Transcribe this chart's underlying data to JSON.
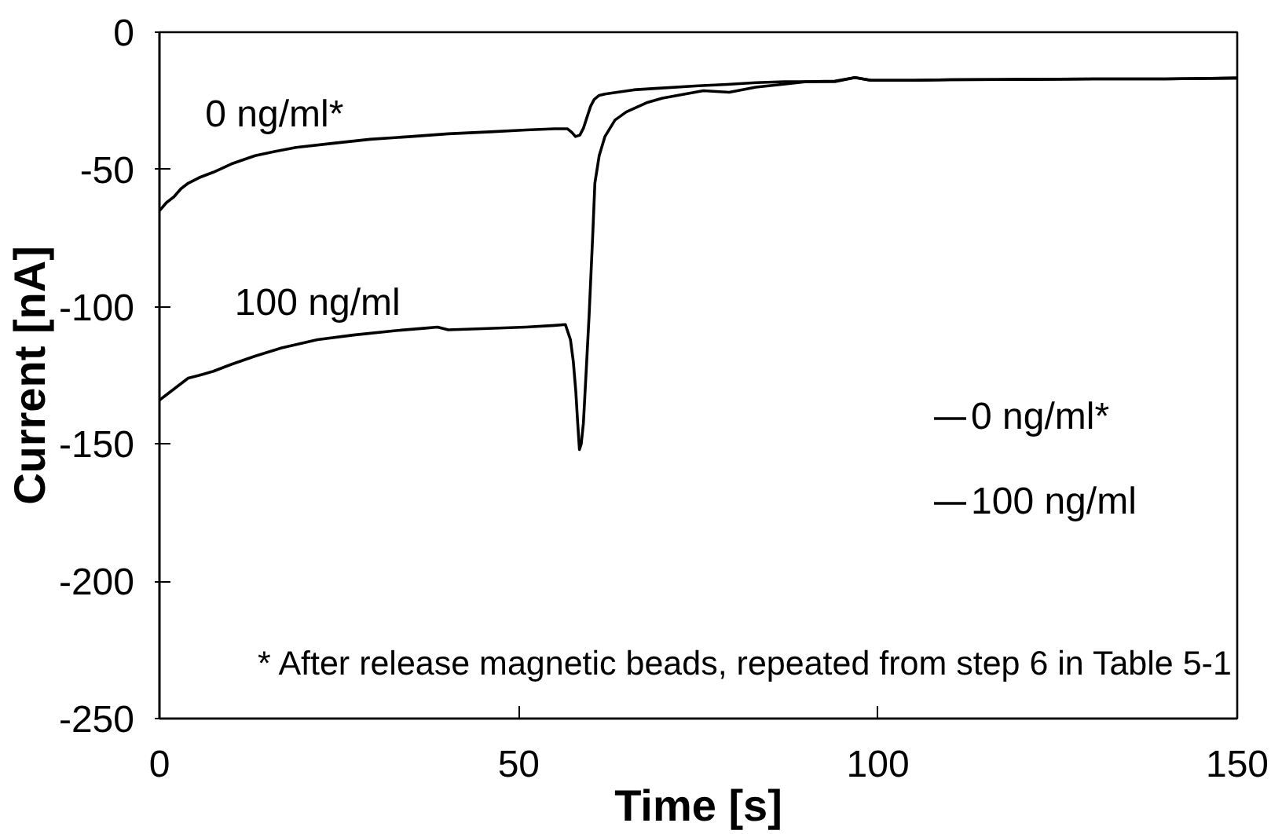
{
  "chart_data": {
    "type": "line",
    "xlabel": "Time [s]",
    "ylabel": "Current [nA]",
    "xlim": [
      0,
      150
    ],
    "ylim": [
      -250,
      0
    ],
    "xticks": [
      0,
      50,
      100,
      150
    ],
    "yticks": [
      0,
      -50,
      -100,
      -150,
      -200,
      -250
    ],
    "legend": "right",
    "series": [
      {
        "name": "0 ng/ml*",
        "color": "#000000",
        "x": [
          0,
          1,
          2,
          3,
          4,
          5.5,
          7.5,
          10,
          13.3,
          16,
          19,
          24,
          29.3,
          35,
          40.2,
          46,
          51,
          55,
          56.8,
          57.4,
          57.9,
          58.5,
          59,
          59.5,
          60,
          60.5,
          61.2,
          62,
          63.3,
          66,
          69,
          75,
          79,
          83,
          87,
          90,
          94,
          96.8,
          99,
          105,
          110,
          120,
          130,
          140,
          150
        ],
        "values": [
          -65,
          -62,
          -60,
          -57,
          -55,
          -53,
          -51,
          -48,
          -45,
          -43.5,
          -42,
          -40.5,
          -39,
          -38,
          -37,
          -36.3,
          -35.6,
          -35.2,
          -35.2,
          -36.5,
          -38,
          -37.5,
          -35,
          -31,
          -27,
          -24.5,
          -23,
          -22.5,
          -22,
          -21,
          -20.5,
          -19.5,
          -19,
          -18.4,
          -18,
          -18,
          -17.8,
          -16.5,
          -17.5,
          -17.5,
          -17.3,
          -17.2,
          -17,
          -17,
          -16.7
        ]
      },
      {
        "name": "100 ng/ml",
        "color": "#000000",
        "x": [
          0,
          1,
          2,
          3,
          4,
          5.5,
          7.5,
          10,
          13.3,
          17,
          22,
          27,
          32.9,
          37,
          38.7,
          40.2,
          45,
          51,
          55,
          56.5,
          57.2,
          57.6,
          57.95,
          58.2,
          58.45,
          58.7,
          59,
          59.4,
          59.8,
          60.3,
          60.6,
          61.2,
          62,
          63.4,
          65,
          67.8,
          70,
          75.7,
          79.3,
          83,
          86.6,
          90,
          94,
          96.8,
          99,
          105,
          110,
          120,
          130,
          140,
          150
        ],
        "values": [
          -134,
          -132,
          -130,
          -128,
          -126,
          -125,
          -123.5,
          -121,
          -118,
          -115,
          -112,
          -110.3,
          -108.7,
          -107.8,
          -107.4,
          -108.4,
          -108,
          -107.4,
          -106.8,
          -106.5,
          -112,
          -120,
          -131,
          -142,
          -152,
          -150,
          -142.5,
          -123,
          -103,
          -74,
          -55,
          -45,
          -38,
          -32,
          -29,
          -25.7,
          -24,
          -21.3,
          -21.9,
          -20,
          -19,
          -18,
          -18,
          -16.5,
          -17.5,
          -17.5,
          -17.3,
          -17.2,
          -17,
          -17,
          -16.7
        ]
      }
    ],
    "annotations": [
      {
        "text": "0 ng/ml*",
        "x": 16,
        "y": -43.5
      },
      {
        "text": "100 ng/ml",
        "x": 22,
        "y": -112
      },
      "* After release magnetic beads, repeated from step 6 in Table 5-1"
    ]
  }
}
